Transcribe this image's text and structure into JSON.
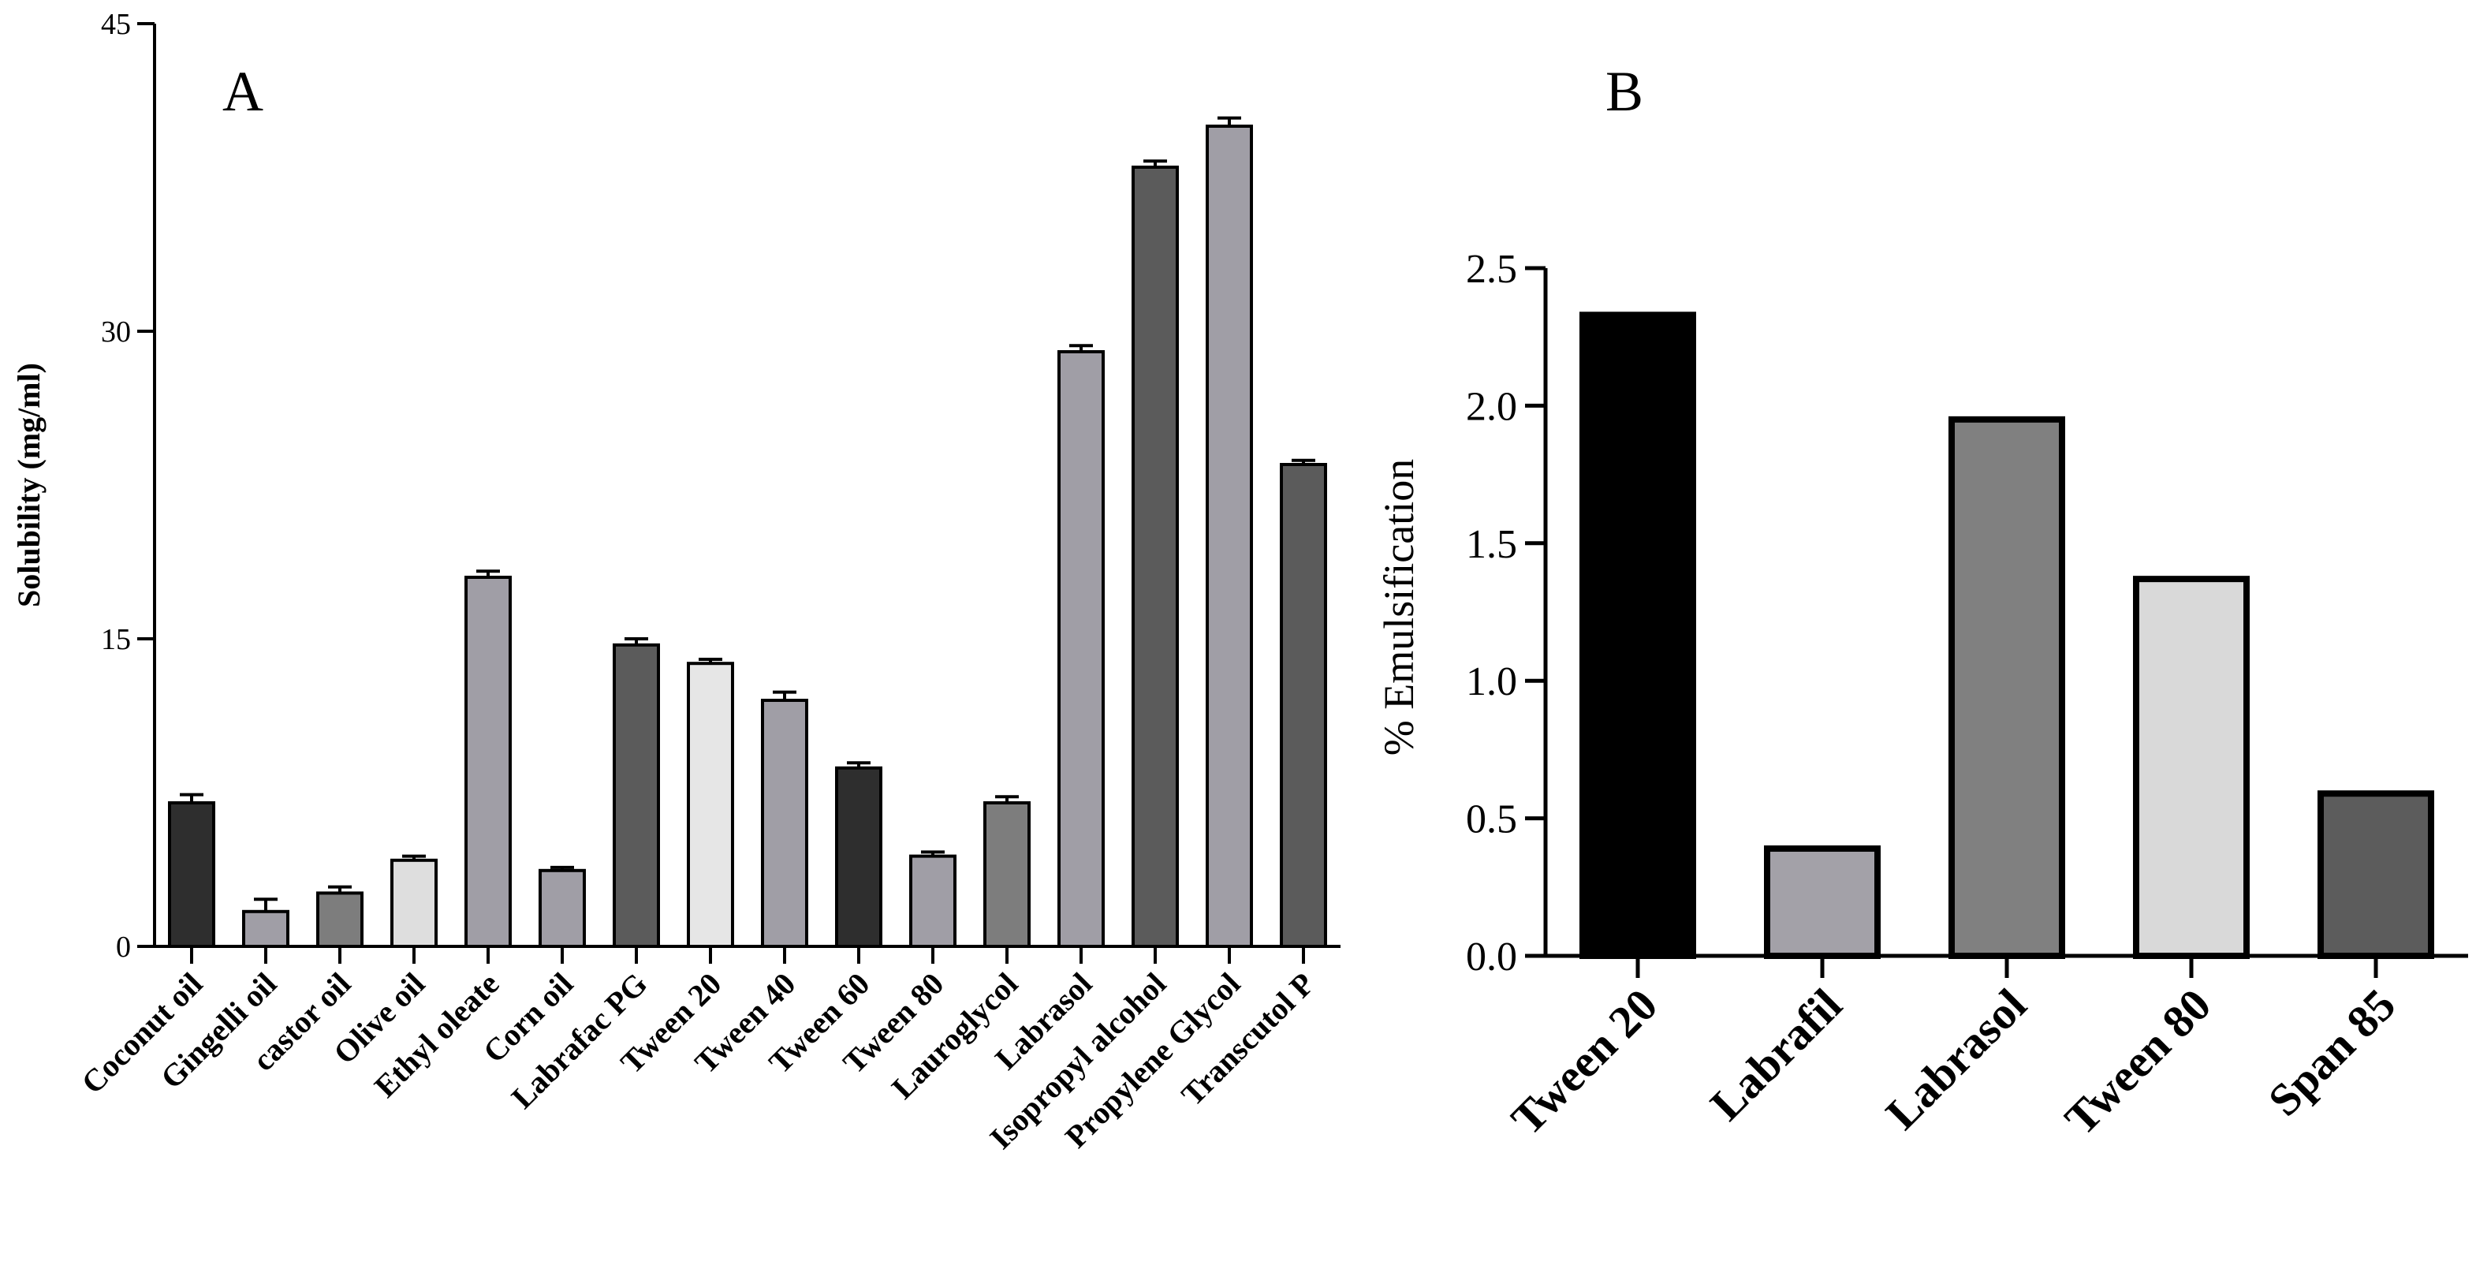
{
  "chart_data": [
    {
      "panel": "A",
      "type": "bar",
      "ylabel": "Solubility (mg/ml)",
      "xlabel": "",
      "ylim": [
        0,
        45
      ],
      "yticks": [
        0,
        15,
        30,
        45
      ],
      "categories": [
        "Coconut oil",
        "Gingelli oil",
        "castor oil",
        "Olive oil",
        "Ethyl oleate",
        "Corn oil",
        "Labrafac PG",
        "Tween 20",
        "Tween 40",
        "Tween 60",
        "Tween 80",
        "Lauroglycol",
        "Labrasol",
        "Isopropyl alcohol",
        "Propylene Glycol",
        "Transcutol P"
      ],
      "values": [
        7.0,
        1.7,
        2.6,
        4.2,
        18.0,
        3.7,
        14.7,
        13.8,
        12.0,
        8.7,
        4.4,
        7.0,
        29.0,
        38.0,
        40.0,
        23.5
      ],
      "errors": [
        0.4,
        0.6,
        0.3,
        0.2,
        0.3,
        0.15,
        0.3,
        0.2,
        0.4,
        0.25,
        0.2,
        0.3,
        0.3,
        0.3,
        0.4,
        0.2
      ],
      "colors": [
        "#2e2e2e",
        "#a09ea6",
        "#7d7d7d",
        "#dedede",
        "#a09ea6",
        "#a09ea6",
        "#5b5b5b",
        "#e6e6e6",
        "#a09ea6",
        "#2e2e2e",
        "#a09ea6",
        "#7d7d7d",
        "#a09ea6",
        "#5b5b5b",
        "#a09ea6",
        "#5b5b5b"
      ]
    },
    {
      "panel": "B",
      "type": "bar",
      "ylabel": "% Emulsification",
      "xlabel": "",
      "ylim": [
        0,
        2.5
      ],
      "yticks": [
        "0.0",
        "0.5",
        "1.0",
        "1.5",
        "2.0",
        "2.5"
      ],
      "categories": [
        "Tween 20",
        "Labrafil",
        "Labrasol",
        "Tween 80",
        "Span 85"
      ],
      "values": [
        2.33,
        0.39,
        1.95,
        1.37,
        0.59
      ],
      "colors": [
        "#000000",
        "#a3a1a8",
        "#808080",
        "#d9d9d9",
        "#5c5c5c"
      ]
    }
  ]
}
